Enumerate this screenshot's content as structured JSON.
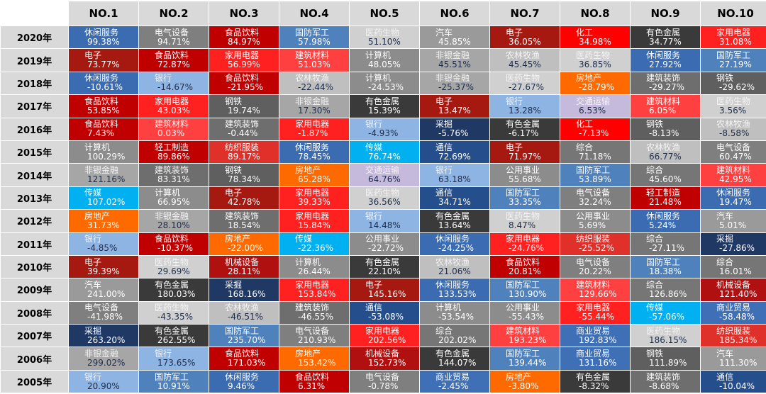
{
  "colors": {
    "休闲服务": "#3b6bb0",
    "电气设备": "#7f7f7f",
    "食品饮料": "#c00000",
    "国防军工": "#4f81bd",
    "医药生物": "#d0d0d0",
    "汽车": "#9a9a9a",
    "电子": "#a51910",
    "化工": "#ff0000",
    "有色金属": "#3a3a3a",
    "家用电器": "#ff2020",
    "计算机": "#8c8c8c",
    "非银金融": "#a6a6a6",
    "农林牧渔": "#bfbfbf",
    "建筑材料": "#ff4040",
    "银行": "#8db4e2",
    "房地产": "#ff6a00",
    "建筑装饰": "#6e6e6e",
    "钢铁": "#5f5f5f",
    "交通运输": "#c5b9dc",
    "采掘": "#1f3864",
    "轻工制造": "#c00000",
    "纺织服装": "#e0302a",
    "传媒": "#00b0f0",
    "通信": "#254e8c",
    "综合": "#767676",
    "公用事业": "#8c8c8c",
    "机械设备": "#b01010",
    "商业贸易": "#3f6fb5"
  },
  "light_text_colors": [
    "#d0d0d0",
    "#bfbfbf",
    "#c5b9dc",
    "#8db4e2",
    "#a6a6a6"
  ],
  "chart_data": {
    "type": "heatmap",
    "columns": [
      "NO.1",
      "NO.2",
      "NO.3",
      "NO.4",
      "NO.5",
      "NO.6",
      "NO.7",
      "NO.8",
      "NO.9",
      "NO.10"
    ],
    "rows": [
      {
        "year": "2020年",
        "cells": [
          [
            "休闲服务",
            "99.38%"
          ],
          [
            "电气设备",
            "94.71%"
          ],
          [
            "食品饮料",
            "84.97%"
          ],
          [
            "国防军工",
            "57.98%"
          ],
          [
            "医药生物",
            "51.10%"
          ],
          [
            "汽车",
            "45.85%"
          ],
          [
            "电子",
            "36.05%"
          ],
          [
            "化工",
            "34.98%"
          ],
          [
            "有色金属",
            "34.77%"
          ],
          [
            "家用电器",
            "31.08%"
          ]
        ]
      },
      {
        "year": "2019年",
        "cells": [
          [
            "电子",
            "73.77%"
          ],
          [
            "食品饮料",
            "72.87%"
          ],
          [
            "家用电器",
            "56.99%"
          ],
          [
            "建筑材料",
            "51.03%"
          ],
          [
            "计算机",
            "48.05%"
          ],
          [
            "非银金融",
            "45.51%"
          ],
          [
            "农林牧渔",
            "45.45%"
          ],
          [
            "医药生物",
            "36.85%"
          ],
          [
            "休闲服务",
            "27.92%"
          ],
          [
            "国防军工",
            "27.19%"
          ]
        ]
      },
      {
        "year": "2018年",
        "cells": [
          [
            "休闲服务",
            "-10.61%"
          ],
          [
            "银行",
            "-14.67%"
          ],
          [
            "食品饮料",
            "-21.95%"
          ],
          [
            "农林牧渔",
            "-22.44%"
          ],
          [
            "计算机",
            "-24.53%"
          ],
          [
            "非银金融",
            "-25.37%"
          ],
          [
            "医药生物",
            "-27.67%"
          ],
          [
            "房地产",
            "-28.79%"
          ],
          [
            "建筑装饰",
            "-29.27%"
          ],
          [
            "钢铁",
            "-29.62%"
          ]
        ]
      },
      {
        "year": "2017年",
        "cells": [
          [
            "食品饮料",
            "53.85%"
          ],
          [
            "家用电器",
            "43.03%"
          ],
          [
            "钢铁",
            "19.74%"
          ],
          [
            "非银金融",
            "17.30%"
          ],
          [
            "有色金属",
            "15.39%"
          ],
          [
            "电子",
            "13.47%"
          ],
          [
            "银行",
            "13.28%"
          ],
          [
            "交通运输",
            "6.53%"
          ],
          [
            "建筑材料",
            "6.05%"
          ],
          [
            "医药生物",
            "3.56%"
          ]
        ]
      },
      {
        "year": "2016年",
        "cells": [
          [
            "食品饮料",
            "7.43%"
          ],
          [
            "建筑材料",
            "0.03%"
          ],
          [
            "建筑装饰",
            "-0.44%"
          ],
          [
            "家用电器",
            "-1.87%"
          ],
          [
            "银行",
            "-4.93%"
          ],
          [
            "采掘",
            "-5.76%"
          ],
          [
            "有色金属",
            "-6.17%"
          ],
          [
            "化工",
            "-7.13%"
          ],
          [
            "钢铁",
            "-8.13%"
          ],
          [
            "农林牧渔",
            "-8.58%"
          ]
        ]
      },
      {
        "year": "2015年",
        "cells": [
          [
            "计算机",
            "100.29%"
          ],
          [
            "轻工制造",
            "89.86%"
          ],
          [
            "纺织服装",
            "89.17%"
          ],
          [
            "休闲服务",
            "78.45%"
          ],
          [
            "传媒",
            "76.74%"
          ],
          [
            "通信",
            "72.69%"
          ],
          [
            "电子",
            "71.97%"
          ],
          [
            "综合",
            "71.18%"
          ],
          [
            "农林牧渔",
            "66.77%"
          ],
          [
            "电气设备",
            "60.47%"
          ]
        ]
      },
      {
        "year": "2014年",
        "cells": [
          [
            "非银金融",
            "121.16%"
          ],
          [
            "建筑装饰",
            "83.31%"
          ],
          [
            "钢铁",
            "78.34%"
          ],
          [
            "房地产",
            "65.28%"
          ],
          [
            "交通运输",
            "64.76%"
          ],
          [
            "银行",
            "63.18%"
          ],
          [
            "公用事业",
            "55.68%"
          ],
          [
            "国防军工",
            "53.89%"
          ],
          [
            "综合",
            "45.60%"
          ],
          [
            "建筑材料",
            "42.95%"
          ]
        ]
      },
      {
        "year": "2013年",
        "cells": [
          [
            "传媒",
            "107.02%"
          ],
          [
            "计算机",
            "66.95%"
          ],
          [
            "电子",
            "42.78%"
          ],
          [
            "家用电器",
            "39.33%"
          ],
          [
            "医药生物",
            "36.56%"
          ],
          [
            "通信",
            "34.71%"
          ],
          [
            "国防军工",
            "33.35%"
          ],
          [
            "电气设备",
            "32.24%"
          ],
          [
            "轻工制造",
            "21.48%"
          ],
          [
            "休闲服务",
            "19.47%"
          ]
        ]
      },
      {
        "year": "2012年",
        "cells": [
          [
            "房地产",
            "31.73%"
          ],
          [
            "非银金融",
            "28.10%"
          ],
          [
            "建筑装饰",
            "18.54%"
          ],
          [
            "家用电器",
            "15.84%"
          ],
          [
            "银行",
            "14.48%"
          ],
          [
            "有色金属",
            "13.64%"
          ],
          [
            "医药生物",
            "8.47%"
          ],
          [
            "公用事业",
            "5.69%"
          ],
          [
            "休闲服务",
            "5.24%"
          ],
          [
            "汽车",
            "5.01%"
          ]
        ]
      },
      {
        "year": "2011年",
        "cells": [
          [
            "银行",
            "-4.85%"
          ],
          [
            "食品饮料",
            "-10.37%"
          ],
          [
            "房地产",
            "-22.00%"
          ],
          [
            "传媒",
            "-22.36%"
          ],
          [
            "公用事业",
            "-22.72%"
          ],
          [
            "休闲服务",
            "-24.25%"
          ],
          [
            "家用电器",
            "-24.76%"
          ],
          [
            "纺织服装",
            "-25.52%"
          ],
          [
            "综合",
            "-27.11%"
          ],
          [
            "采掘",
            "-27.86%"
          ]
        ]
      },
      {
        "year": "2010年",
        "cells": [
          [
            "电子",
            "39.39%"
          ],
          [
            "医药生物",
            "29.69%"
          ],
          [
            "机械设备",
            "28.11%"
          ],
          [
            "计算机",
            "26.44%"
          ],
          [
            "有色金属",
            "22.10%"
          ],
          [
            "农林牧渔",
            "21.06%"
          ],
          [
            "食品饮料",
            "20.81%"
          ],
          [
            "电气设备",
            "20.22%"
          ],
          [
            "国防军工",
            "18.38%"
          ],
          [
            "综合",
            "16.01%"
          ]
        ]
      },
      {
        "year": "2009年",
        "cells": [
          [
            "汽车",
            "241.00%"
          ],
          [
            "有色金属",
            "180.03%"
          ],
          [
            "采掘",
            "168.16%"
          ],
          [
            "家用电器",
            "153.84%"
          ],
          [
            "电子",
            "145.16%"
          ],
          [
            "休闲服务",
            "133.53%"
          ],
          [
            "国防军工",
            "130.90%"
          ],
          [
            "建筑材料",
            "129.66%"
          ],
          [
            "综合",
            "126.86%"
          ],
          [
            "机械设备",
            "121.40%"
          ]
        ]
      },
      {
        "year": "2008年",
        "cells": [
          [
            "电气设备",
            "-41.98%"
          ],
          [
            "医药生物",
            "-43.35%"
          ],
          [
            "农林牧渔",
            "-46.51%"
          ],
          [
            "建筑装饰",
            "-46.55%"
          ],
          [
            "通信",
            "-53.08%"
          ],
          [
            "计算机",
            "-53.54%"
          ],
          [
            "公用事业",
            "-55.43%"
          ],
          [
            "家用电器",
            "-55.44%"
          ],
          [
            "传媒",
            "-57.06%"
          ],
          [
            "商业贸易",
            "-58.48%"
          ]
        ]
      },
      {
        "year": "2007年",
        "cells": [
          [
            "采掘",
            "263.20%"
          ],
          [
            "有色金属",
            "262.55%"
          ],
          [
            "国防军工",
            "235.70%"
          ],
          [
            "电气设备",
            "210.93%"
          ],
          [
            "家用电器",
            "202.56%"
          ],
          [
            "综合",
            "202.02%"
          ],
          [
            "建筑材料",
            "193.23%"
          ],
          [
            "商业贸易",
            "192.83%"
          ],
          [
            "医药生物",
            "186.15%"
          ],
          [
            "纺织服装",
            "185.34%"
          ]
        ]
      },
      {
        "year": "2006年",
        "cells": [
          [
            "非银金融",
            "299.02%"
          ],
          [
            "银行",
            "173.65%"
          ],
          [
            "食品饮料",
            "171.03%"
          ],
          [
            "房地产",
            "153.42%"
          ],
          [
            "机械设备",
            "152.73%"
          ],
          [
            "有色金属",
            "144.07%"
          ],
          [
            "国防军工",
            "139.44%"
          ],
          [
            "商业贸易",
            "131.16%"
          ],
          [
            "钢铁",
            "111.89%"
          ],
          [
            "汽车",
            "111.30%"
          ]
        ]
      },
      {
        "year": "2005年",
        "cells": [
          [
            "银行",
            "20.90%"
          ],
          [
            "国防军工",
            "10.91%"
          ],
          [
            "休闲服务",
            "9.46%"
          ],
          [
            "食品饮料",
            "6.31%"
          ],
          [
            "电气设备",
            "-0.78%"
          ],
          [
            "商业贸易",
            "-2.45%"
          ],
          [
            "房地产",
            "-3.80%"
          ],
          [
            "有色金属",
            "-8.32%"
          ],
          [
            "建筑装饰",
            "-8.68%"
          ],
          [
            "通信",
            "-10.04%"
          ]
        ]
      }
    ]
  }
}
